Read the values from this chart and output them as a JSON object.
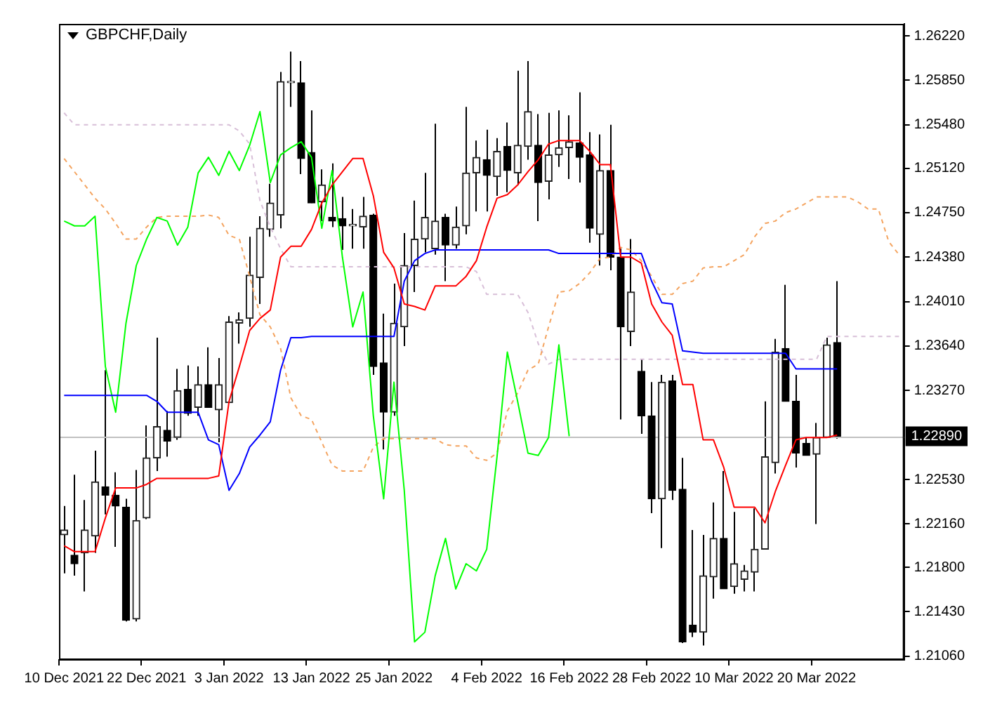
{
  "chart_data": {
    "type": "candlestick",
    "title": "GBPCHF,Daily",
    "categories": [
      "10 Dec 2021",
      null,
      null,
      null,
      null,
      null,
      null,
      null,
      "22 Dec 2021",
      null,
      null,
      null,
      null,
      null,
      null,
      null,
      "3 Jan 2022",
      null,
      null,
      null,
      null,
      null,
      null,
      null,
      "13 Jan 2022",
      null,
      null,
      null,
      null,
      null,
      null,
      null,
      "25 Jan 2022",
      null,
      null,
      null,
      null,
      null,
      null,
      null,
      null,
      "4 Feb 2022",
      null,
      null,
      null,
      null,
      null,
      null,
      null,
      "16 Feb 2022",
      null,
      null,
      null,
      null,
      null,
      null,
      null,
      "28 Feb 2022",
      null,
      null,
      null,
      null,
      null,
      null,
      null,
      "10 Mar 2022",
      null,
      null,
      null,
      null,
      null,
      null,
      null,
      "20 Mar 2022",
      null,
      null,
      null,
      null,
      null,
      null,
      null,
      null
    ],
    "ohlc": [
      [
        1.2207,
        1.2231,
        1.2175,
        1.2211
      ],
      [
        1.219,
        1.2257,
        1.2173,
        1.2183
      ],
      [
        1.2192,
        1.2236,
        1.216,
        1.2211
      ],
      [
        1.2206,
        1.2277,
        1.2192,
        1.2251
      ],
      [
        1.2247,
        1.2344,
        1.2224,
        1.224
      ],
      [
        1.224,
        1.2259,
        1.2197,
        1.2231
      ],
      [
        1.223,
        1.2237,
        1.2135,
        1.2136
      ],
      [
        1.2137,
        1.2261,
        1.2135,
        1.2219
      ],
      [
        1.2221,
        1.2298,
        1.222,
        1.2271
      ],
      [
        1.2271,
        1.2371,
        1.226,
        1.2297
      ],
      [
        1.2294,
        1.231,
        1.2272,
        1.2285
      ],
      [
        1.2288,
        1.2345,
        1.2286,
        1.2327
      ],
      [
        1.2328,
        1.2348,
        1.2306,
        1.2308
      ],
      [
        1.2313,
        1.2347,
        1.2306,
        1.2332
      ],
      [
        1.2332,
        1.2363,
        1.2313,
        1.2313
      ],
      [
        1.2311,
        1.2354,
        1.2284,
        1.2332
      ],
      [
        1.2317,
        1.2389,
        1.2317,
        1.2384
      ],
      [
        1.2383,
        1.2392,
        1.2366,
        1.2386
      ],
      [
        1.2387,
        1.2455,
        1.238,
        1.2423
      ],
      [
        1.2421,
        1.2472,
        1.2399,
        1.2462
      ],
      [
        1.2461,
        1.2499,
        1.2455,
        1.2483
      ],
      [
        1.2473,
        1.2592,
        1.2462,
        1.2584
      ],
      [
        1.2583,
        1.2609,
        1.2563,
        1.2584
      ],
      [
        1.2583,
        1.2601,
        1.2507,
        1.252
      ],
      [
        1.2525,
        1.256,
        1.2483,
        1.2483
      ],
      [
        1.2484,
        1.2511,
        1.2468,
        1.2498
      ],
      [
        1.2471,
        1.2516,
        1.2463,
        1.2468
      ],
      [
        1.247,
        1.2488,
        1.2444,
        1.2464
      ],
      [
        1.2464,
        1.2478,
        1.2445,
        1.2464
      ],
      [
        1.2463,
        1.2488,
        1.2445,
        1.2472
      ],
      [
        1.2473,
        1.2474,
        1.234,
        1.2347
      ],
      [
        1.235,
        1.2391,
        1.2278,
        1.2309
      ],
      [
        1.2309,
        1.2416,
        1.2306,
        1.2383
      ],
      [
        1.238,
        1.2458,
        1.2364,
        1.2431
      ],
      [
        1.2431,
        1.2485,
        1.2409,
        1.2453
      ],
      [
        1.2453,
        1.2508,
        1.2442,
        1.2471
      ],
      [
        1.2445,
        1.2549,
        1.244,
        1.2468
      ],
      [
        1.2471,
        1.2474,
        1.2418,
        1.2448
      ],
      [
        1.2448,
        1.248,
        1.2445,
        1.2463
      ],
      [
        1.2464,
        1.2563,
        1.2457,
        1.2508
      ],
      [
        1.2508,
        1.2535,
        1.2476,
        1.2521
      ],
      [
        1.2519,
        1.2544,
        1.2476,
        1.2506
      ],
      [
        1.2505,
        1.2537,
        1.2489,
        1.2526
      ],
      [
        1.253,
        1.255,
        1.2492,
        1.251
      ],
      [
        1.2508,
        1.2593,
        1.2498,
        1.2531
      ],
      [
        1.253,
        1.2601,
        1.2519,
        1.2559
      ],
      [
        1.2531,
        1.2557,
        1.2468,
        1.25
      ],
      [
        1.2501,
        1.2558,
        1.2486,
        1.2523
      ],
      [
        1.2523,
        1.256,
        1.2513,
        1.2529
      ],
      [
        1.2529,
        1.2556,
        1.2503,
        1.2534
      ],
      [
        1.2533,
        1.2575,
        1.25,
        1.2521
      ],
      [
        1.2523,
        1.2542,
        1.245,
        1.2462
      ],
      [
        1.2457,
        1.254,
        1.2431,
        1.251
      ],
      [
        1.251,
        1.2548,
        1.2427,
        1.2438
      ],
      [
        1.2438,
        1.2445,
        1.2303,
        1.238
      ],
      [
        1.2376,
        1.2453,
        1.2364,
        1.2409
      ],
      [
        1.2343,
        1.2353,
        1.2291,
        1.2306
      ],
      [
        1.2306,
        1.2334,
        1.2225,
        1.2237
      ],
      [
        1.2237,
        1.234,
        1.2196,
        1.2334
      ],
      [
        1.2335,
        1.234,
        1.2236,
        1.2244
      ],
      [
        1.2245,
        1.2271,
        1.2117,
        1.2118
      ],
      [
        1.2132,
        1.2211,
        1.2122,
        1.2126
      ],
      [
        1.2126,
        1.2207,
        1.2115,
        1.2173
      ],
      [
        1.2172,
        1.2234,
        1.2154,
        1.2204
      ],
      [
        1.2204,
        1.226,
        1.2162,
        1.2162
      ],
      [
        1.2164,
        1.2226,
        1.2158,
        1.2183
      ],
      [
        1.217,
        1.2182,
        1.216,
        1.2177
      ],
      [
        1.2176,
        1.2229,
        1.216,
        1.2195
      ],
      [
        1.2195,
        1.2318,
        1.2195,
        1.2272
      ],
      [
        1.2267,
        1.237,
        1.2258,
        1.2359
      ],
      [
        1.2362,
        1.2415,
        1.2318,
        1.2318
      ],
      [
        1.2318,
        1.234,
        1.2263,
        1.2275
      ],
      [
        1.2283,
        1.2288,
        1.2273,
        1.2273
      ],
      [
        1.2274,
        1.23,
        1.2216,
        1.2288
      ],
      [
        1.2288,
        1.2371,
        1.2288,
        1.2365
      ],
      [
        1.2367,
        1.2418,
        1.2287,
        1.2289
      ],
      null,
      null,
      null,
      null,
      null,
      null
    ],
    "series": [
      {
        "type": "line",
        "color": "#ff0000",
        "line_style": "solid",
        "values": [
          1.2198,
          1.2193,
          1.2193,
          1.2193,
          1.2221,
          1.2246,
          1.2246,
          1.2246,
          1.2249,
          1.2254,
          1.2254,
          1.2254,
          1.2254,
          1.2254,
          1.2254,
          1.2256,
          1.2318,
          1.2347,
          1.2377,
          1.2387,
          1.2394,
          1.2438,
          1.2447,
          1.2447,
          1.2461,
          1.2483,
          1.2498,
          1.2509,
          1.252,
          1.252,
          1.2489,
          1.2442,
          1.2429,
          1.2399,
          1.2397,
          1.2394,
          1.2414,
          1.2414,
          1.2414,
          1.2422,
          1.2435,
          1.2463,
          1.2487,
          1.249,
          1.2498,
          1.2509,
          1.2519,
          1.2532,
          1.2535,
          1.2535,
          1.2535,
          1.2526,
          1.2515,
          1.2515,
          1.2438,
          1.2438,
          1.2433,
          1.2399,
          1.2384,
          1.2373,
          1.2332,
          1.2332,
          1.2286,
          1.2286,
          1.2263,
          1.223,
          1.223,
          1.223,
          1.2217,
          1.2243,
          1.2265,
          1.2286,
          1.2288,
          1.2288,
          1.2288,
          1.229,
          null,
          null,
          null,
          null,
          null,
          null
        ]
      },
      {
        "type": "line",
        "color": "#0000ff",
        "line_style": "solid",
        "values": [
          1.2323,
          1.2323,
          1.2323,
          1.2323,
          1.2323,
          1.2323,
          1.2323,
          1.2323,
          1.2323,
          1.2318,
          1.2309,
          1.2309,
          1.2309,
          1.2309,
          1.2286,
          1.2282,
          1.2244,
          1.2258,
          1.228,
          1.229,
          1.2301,
          1.2344,
          1.2371,
          1.2371,
          1.2372,
          1.2372,
          1.2372,
          1.2372,
          1.2372,
          1.2372,
          1.2372,
          1.2372,
          1.2372,
          1.2418,
          1.2435,
          1.2441,
          1.2444,
          1.2444,
          1.2444,
          1.2444,
          1.2444,
          1.2444,
          1.2444,
          1.2444,
          1.2444,
          1.2444,
          1.2444,
          1.2444,
          1.2441,
          1.2441,
          1.2441,
          1.2441,
          1.2441,
          1.2441,
          1.2441,
          1.2441,
          1.2441,
          1.2418,
          1.24,
          1.2399,
          1.236,
          1.2359,
          1.2358,
          1.2358,
          1.2358,
          1.2358,
          1.2358,
          1.2358,
          1.2358,
          1.2358,
          1.2358,
          1.2345,
          1.2345,
          1.2345,
          1.2345,
          1.2345,
          null,
          null,
          null,
          null,
          null,
          null
        ]
      },
      {
        "type": "line",
        "color": "#00ff00",
        "line_style": "solid",
        "values": [
          1.2468,
          1.2464,
          1.2464,
          1.2472,
          1.2347,
          1.2309,
          1.2383,
          1.2431,
          1.2453,
          1.2471,
          1.2468,
          1.2448,
          1.2463,
          1.2508,
          1.2521,
          1.2506,
          1.2526,
          1.251,
          1.2531,
          1.2559,
          1.25,
          1.2523,
          1.2529,
          1.2534,
          1.2521,
          1.2462,
          1.251,
          1.2438,
          1.238,
          1.2409,
          1.2306,
          1.2237,
          1.2334,
          1.2244,
          1.2118,
          1.2126,
          1.2173,
          1.2204,
          1.2162,
          1.2183,
          1.2177,
          1.2195,
          1.2272,
          1.2359,
          1.2318,
          1.2275,
          1.2273,
          1.2288,
          1.2365,
          1.2289,
          null,
          null,
          null,
          null,
          null,
          null,
          null,
          null,
          null,
          null,
          null,
          null,
          null,
          null,
          null,
          null,
          null,
          null,
          null,
          null,
          null,
          null,
          null,
          null,
          null,
          null,
          null,
          null,
          null,
          null,
          null,
          null
        ]
      },
      {
        "type": "line",
        "color": "#f4a460",
        "line_style": "dashed",
        "values": [
          1.252,
          1.2509,
          1.2498,
          1.2487,
          1.2478,
          1.2466,
          1.2453,
          1.2453,
          1.2463,
          1.2471,
          1.2472,
          1.2472,
          1.2472,
          1.2472,
          1.2473,
          1.2471,
          1.2456,
          1.2453,
          1.2422,
          1.239,
          1.238,
          1.2362,
          1.2321,
          1.2306,
          1.2303,
          1.2284,
          1.2265,
          1.226,
          1.226,
          1.226,
          1.228,
          1.2287,
          1.2287,
          1.2287,
          1.2287,
          1.2287,
          1.2287,
          1.2282,
          1.2281,
          1.2281,
          1.2271,
          1.2269,
          1.2275,
          1.231,
          1.2325,
          1.2344,
          1.2349,
          1.238,
          1.2409,
          1.241,
          1.2416,
          1.2425,
          1.2437,
          1.2438,
          1.2446,
          1.2444,
          1.2435,
          1.2422,
          1.2407,
          1.2407,
          1.2416,
          1.2418,
          1.2429,
          1.243,
          1.243,
          1.2435,
          1.244,
          1.2455,
          1.2466,
          1.2468,
          1.2475,
          1.2478,
          1.2483,
          1.2488,
          1.2488,
          1.2488,
          1.2488,
          1.2484,
          1.2478,
          1.2478,
          1.2451,
          1.244
        ]
      },
      {
        "type": "line",
        "color": "#d8bfd8",
        "line_style": "dashed",
        "values": [
          1.2558,
          1.2548,
          1.2548,
          1.2548,
          1.2548,
          1.2548,
          1.2548,
          1.2548,
          1.2548,
          1.2548,
          1.2548,
          1.2548,
          1.2548,
          1.2548,
          1.2548,
          1.2548,
          1.2548,
          1.2543,
          1.2532,
          1.2485,
          1.2463,
          1.2445,
          1.243,
          1.243,
          1.243,
          1.243,
          1.243,
          1.243,
          1.243,
          1.243,
          1.243,
          1.243,
          1.243,
          1.243,
          1.243,
          1.243,
          1.243,
          1.243,
          1.243,
          1.243,
          1.2426,
          1.2407,
          1.2407,
          1.2407,
          1.2407,
          1.2392,
          1.2366,
          1.2349,
          1.2353,
          1.2353,
          1.2353,
          1.2353,
          1.2353,
          1.2353,
          1.2353,
          1.2353,
          1.2353,
          1.2353,
          1.2353,
          1.2353,
          1.2353,
          1.2353,
          1.2353,
          1.2353,
          1.2353,
          1.2353,
          1.2353,
          1.2353,
          1.2353,
          1.2353,
          1.2353,
          1.2353,
          1.2353,
          1.2353,
          1.2372,
          1.2372,
          1.2372,
          1.2372,
          1.2372,
          1.2372,
          1.2372,
          1.2372
        ]
      }
    ],
    "ylim": [
      1.2103,
      1.2632
    ],
    "yticks": [
      {
        "value": 1.2106,
        "label": "1.21060"
      },
      {
        "value": 1.2143,
        "label": "1.21430"
      },
      {
        "value": 1.218,
        "label": "1.21800"
      },
      {
        "value": 1.2216,
        "label": "1.22160"
      },
      {
        "value": 1.2253,
        "label": "1.22530"
      },
      {
        "value": 1.2327,
        "label": "1.23270"
      },
      {
        "value": 1.2364,
        "label": "1.23640"
      },
      {
        "value": 1.2401,
        "label": "1.24010"
      },
      {
        "value": 1.2438,
        "label": "1.24380"
      },
      {
        "value": 1.2475,
        "label": "1.24750"
      },
      {
        "value": 1.2512,
        "label": "1.25120"
      },
      {
        "value": 1.2548,
        "label": "1.25480"
      },
      {
        "value": 1.2585,
        "label": "1.25850"
      },
      {
        "value": 1.2622,
        "label": "1.26220"
      }
    ],
    "ref_lines": [
      {
        "axis": "y",
        "value": 1.2289,
        "label": "1.22890",
        "color": "#c0c0c0"
      }
    ],
    "grid": false,
    "marker": "none"
  }
}
